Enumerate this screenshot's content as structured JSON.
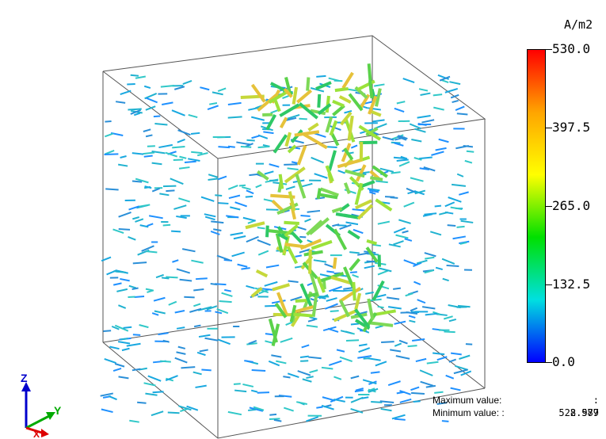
{
  "legend": {
    "unit": "A/m2",
    "ticks": [
      "530.0",
      "397.5",
      "265.0",
      "132.5",
      "0.0"
    ],
    "colors": [
      "#ff0000",
      "#ffa500",
      "#ffff00",
      "#00e000",
      "#00e0e0",
      "#0000ff"
    ]
  },
  "stats": {
    "max_label": "Maximum value:",
    "max_value": ": 528.979",
    "min_label": "Minimum value: :",
    "min_value": "2.587"
  },
  "axes": {
    "z_label": "Z",
    "y_label": "Y",
    "x_label": "X"
  }
}
